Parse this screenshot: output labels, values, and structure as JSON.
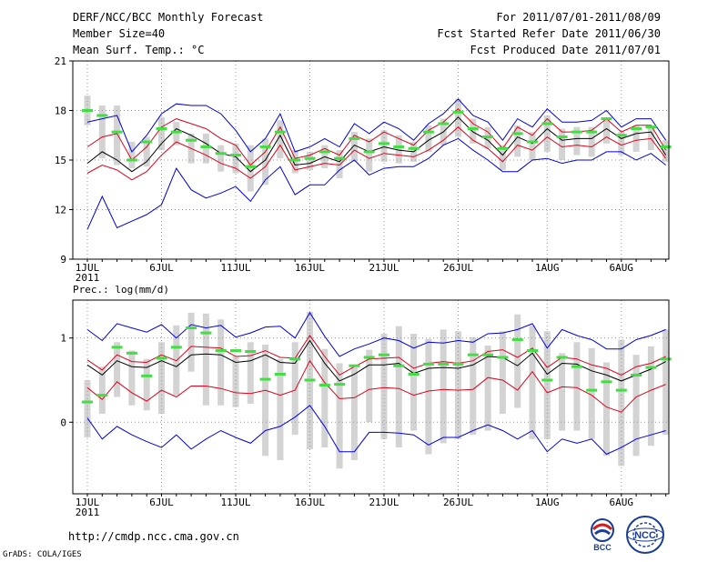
{
  "header": {
    "title": "DERF/NCC/BCC Monthly Forecast",
    "member_size": "Member Size=40",
    "variable": "Mean Surf. Temp.: °C",
    "period": "For 2011/07/01-2011/08/09",
    "started": "Fcst Started Refer Date 2011/06/30",
    "produced": "Fcst Produced Date 2011/07/01"
  },
  "footer": {
    "url": "http://cmdp.ncc.cma.gov.cn",
    "credit": "GrADS: COLA/IGES",
    "logo_bcc": "BCC",
    "logo_ncc": "NCC"
  },
  "colors": {
    "box": "#d3d3d3",
    "mean": "#000000",
    "spread": "#e0001b",
    "extreme": "#0000e0",
    "mode": "#44dd44",
    "grid": "#999999"
  },
  "chart_data": [
    {
      "type": "line",
      "name": "temperature",
      "title": "Mean Surf. Temp.: °C",
      "ylim": [
        9,
        21
      ],
      "yticks": [
        9,
        12,
        15,
        18,
        21
      ],
      "x": [
        1,
        2,
        3,
        4,
        5,
        6,
        7,
        8,
        9,
        10,
        11,
        12,
        13,
        14,
        15,
        16,
        17,
        18,
        19,
        20,
        21,
        22,
        23,
        24,
        25,
        26,
        27,
        28,
        29,
        30,
        31,
        32,
        33,
        34,
        35,
        36,
        37,
        38,
        39,
        40
      ],
      "xtick_labels": [
        {
          "x": 1,
          "label": "1JUL",
          "sub": "2011"
        },
        {
          "x": 6,
          "label": "6JUL"
        },
        {
          "x": 11,
          "label": "11JUL"
        },
        {
          "x": 16,
          "label": "16JUL"
        },
        {
          "x": 21,
          "label": "21JUL"
        },
        {
          "x": 26,
          "label": "26JUL"
        },
        {
          "x": 32,
          "label": "1AUG"
        },
        {
          "x": 37,
          "label": "6AUG"
        }
      ],
      "series": [
        {
          "name": "max",
          "values": [
            17.3,
            17.5,
            17.7,
            15.5,
            16.5,
            17.8,
            18.4,
            18.3,
            18.3,
            17.8,
            16.8,
            15.5,
            16.3,
            17.8,
            15.5,
            15.8,
            16.3,
            15.8,
            17.2,
            16.6,
            17.3,
            16.9,
            16.2,
            17.2,
            17.8,
            18.7,
            17.7,
            17.3,
            16.2,
            17.5,
            17.0,
            18.1,
            17.3,
            17.3,
            17.4,
            18.0,
            17.0,
            17.5,
            17.5,
            16.2
          ]
        },
        {
          "name": "upper",
          "values": [
            15.8,
            16.4,
            16.6,
            15.0,
            15.8,
            17.0,
            17.5,
            17.2,
            16.9,
            16.3,
            15.9,
            14.7,
            15.5,
            17.0,
            15.1,
            15.3,
            15.7,
            15.3,
            16.5,
            16.1,
            16.7,
            16.3,
            15.9,
            16.8,
            17.3,
            18.1,
            17.2,
            16.7,
            15.7,
            17.0,
            16.5,
            17.5,
            16.7,
            16.7,
            16.8,
            17.5,
            16.7,
            17.1,
            17.1,
            15.6
          ]
        },
        {
          "name": "mean",
          "values": [
            14.8,
            15.5,
            15.0,
            14.3,
            14.9,
            16.0,
            16.9,
            16.5,
            16.0,
            15.4,
            15.2,
            14.3,
            15.0,
            16.5,
            14.7,
            14.8,
            15.2,
            14.9,
            15.9,
            15.5,
            15.8,
            15.6,
            15.5,
            16.2,
            16.7,
            17.6,
            16.7,
            16.2,
            15.3,
            16.4,
            16.0,
            16.9,
            16.2,
            16.3,
            16.3,
            16.9,
            16.3,
            16.6,
            16.7,
            15.3
          ]
        },
        {
          "name": "lower",
          "values": [
            14.2,
            14.7,
            14.4,
            13.8,
            14.3,
            15.3,
            16.1,
            15.7,
            15.3,
            14.8,
            14.5,
            13.9,
            14.6,
            15.9,
            14.4,
            14.6,
            14.8,
            14.7,
            15.6,
            15.1,
            15.4,
            15.3,
            15.2,
            15.6,
            16.2,
            17.0,
            16.2,
            15.7,
            14.9,
            15.9,
            15.6,
            16.4,
            15.8,
            15.9,
            15.8,
            16.4,
            15.9,
            16.2,
            16.3,
            15.1
          ]
        },
        {
          "name": "min",
          "values": [
            10.8,
            12.8,
            10.9,
            11.3,
            11.7,
            12.3,
            14.5,
            13.2,
            12.7,
            13.0,
            13.4,
            12.5,
            13.8,
            14.6,
            12.9,
            13.5,
            13.5,
            14.4,
            15.0,
            14.1,
            14.5,
            14.6,
            14.6,
            15.1,
            15.9,
            16.3,
            15.6,
            15.0,
            14.3,
            14.3,
            15.0,
            15.1,
            14.8,
            15.0,
            15.0,
            15.5,
            15.5,
            15.0,
            15.4,
            14.7
          ]
        },
        {
          "name": "box_high",
          "values": [
            18.9,
            18.3,
            18.3,
            16.1,
            16.4,
            17.6,
            17.3,
            16.6,
            16.6,
            15.9,
            16.0,
            15.9,
            16.3,
            17.4,
            15.6,
            15.5,
            15.9,
            15.6,
            16.7,
            16.3,
            16.8,
            16.5,
            16.1,
            17.1,
            17.5,
            18.7,
            17.5,
            17.0,
            15.9,
            17.1,
            16.7,
            17.7,
            16.9,
            17.0,
            17.0,
            17.5,
            16.7,
            17.1,
            17.0,
            16.2
          ]
        },
        {
          "name": "box_low",
          "values": [
            17.1,
            15.1,
            14.7,
            14.5,
            14.6,
            15.6,
            15.9,
            14.8,
            14.8,
            14.3,
            14.2,
            13.1,
            13.5,
            15.1,
            14.2,
            14.4,
            14.5,
            13.9,
            14.9,
            14.3,
            14.9,
            14.8,
            14.9,
            15.5,
            15.9,
            16.4,
            16.0,
            15.7,
            14.4,
            15.2,
            15.0,
            15.5,
            15.0,
            15.3,
            15.2,
            16.0,
            15.3,
            15.5,
            15.6,
            14.9
          ]
        },
        {
          "name": "mode",
          "values": [
            18.0,
            17.7,
            16.7,
            15.0,
            16.1,
            16.9,
            16.7,
            16.2,
            15.8,
            15.4,
            15.3,
            14.6,
            15.8,
            16.7,
            15.0,
            15.1,
            15.5,
            15.1,
            16.3,
            15.5,
            16.0,
            15.8,
            15.7,
            16.7,
            17.2,
            17.9,
            16.9,
            16.4,
            15.7,
            16.6,
            16.1,
            17.2,
            16.4,
            16.7,
            16.7,
            17.5,
            16.5,
            16.9,
            17.0,
            15.8
          ]
        }
      ]
    },
    {
      "type": "line",
      "name": "precipitation",
      "title": "Prec.: log(mm/d)",
      "ylim": [
        -0.85,
        1.45
      ],
      "yticks": [
        0,
        1
      ],
      "x": [
        1,
        2,
        3,
        4,
        5,
        6,
        7,
        8,
        9,
        10,
        11,
        12,
        13,
        14,
        15,
        16,
        17,
        18,
        19,
        20,
        21,
        22,
        23,
        24,
        25,
        26,
        27,
        28,
        29,
        30,
        31,
        32,
        33,
        34,
        35,
        36,
        37,
        38,
        39,
        40
      ],
      "xtick_labels": [
        {
          "x": 1,
          "label": "1JUL",
          "sub": "2011"
        },
        {
          "x": 6,
          "label": "6JUL"
        },
        {
          "x": 11,
          "label": "11JUL"
        },
        {
          "x": 16,
          "label": "16JUL"
        },
        {
          "x": 21,
          "label": "21JUL"
        },
        {
          "x": 26,
          "label": "26JUL"
        },
        {
          "x": 32,
          "label": "1AUG"
        },
        {
          "x": 37,
          "label": "6AUG"
        }
      ],
      "series": [
        {
          "name": "max",
          "values": [
            1.1,
            0.97,
            1.17,
            1.12,
            1.07,
            1.16,
            1.0,
            1.16,
            1.12,
            1.15,
            1.01,
            1.06,
            1.13,
            1.14,
            1.0,
            1.3,
            1.02,
            0.78,
            0.87,
            0.93,
            1.0,
            0.97,
            0.88,
            0.95,
            0.94,
            0.97,
            0.95,
            1.05,
            1.06,
            1.1,
            1.17,
            0.88,
            1.1,
            1.03,
            0.98,
            0.87,
            0.87,
            0.98,
            1.03,
            1.1
          ]
        },
        {
          "name": "upper",
          "values": [
            0.74,
            0.62,
            0.8,
            0.72,
            0.71,
            0.8,
            0.73,
            0.9,
            0.89,
            0.88,
            0.78,
            0.79,
            0.85,
            0.77,
            0.76,
            1.03,
            0.78,
            0.56,
            0.66,
            0.75,
            0.76,
            0.77,
            0.64,
            0.7,
            0.72,
            0.7,
            0.73,
            0.84,
            0.86,
            0.77,
            0.88,
            0.65,
            0.77,
            0.75,
            0.68,
            0.64,
            0.56,
            0.66,
            0.7,
            0.78
          ]
        },
        {
          "name": "mean",
          "values": [
            0.68,
            0.56,
            0.73,
            0.66,
            0.65,
            0.73,
            0.66,
            0.8,
            0.81,
            0.8,
            0.71,
            0.73,
            0.8,
            0.71,
            0.7,
            0.97,
            0.7,
            0.49,
            0.57,
            0.68,
            0.68,
            0.7,
            0.58,
            0.64,
            0.65,
            0.64,
            0.68,
            0.78,
            0.77,
            0.67,
            0.82,
            0.57,
            0.7,
            0.69,
            0.61,
            0.56,
            0.49,
            0.56,
            0.63,
            0.72
          ]
        },
        {
          "name": "lower",
          "values": [
            0.41,
            0.27,
            0.48,
            0.35,
            0.25,
            0.38,
            0.3,
            0.43,
            0.43,
            0.4,
            0.35,
            0.34,
            0.38,
            0.32,
            0.38,
            0.73,
            0.47,
            0.28,
            0.29,
            0.39,
            0.41,
            0.4,
            0.32,
            0.37,
            0.39,
            0.38,
            0.39,
            0.53,
            0.5,
            0.38,
            0.6,
            0.35,
            0.42,
            0.41,
            0.32,
            0.18,
            0.12,
            0.3,
            0.38,
            0.45
          ]
        },
        {
          "name": "min",
          "values": [
            0.05,
            -0.2,
            -0.05,
            -0.15,
            -0.23,
            -0.3,
            -0.15,
            -0.32,
            -0.2,
            -0.1,
            -0.18,
            -0.25,
            -0.1,
            -0.05,
            0.06,
            0.2,
            -0.05,
            -0.35,
            -0.35,
            -0.12,
            -0.12,
            -0.13,
            -0.15,
            -0.27,
            -0.18,
            -0.18,
            -0.1,
            -0.03,
            -0.1,
            -0.2,
            -0.1,
            -0.35,
            -0.2,
            -0.25,
            -0.2,
            -0.38,
            -0.3,
            -0.2,
            -0.15,
            -0.1
          ]
        },
        {
          "name": "box_high",
          "values": [
            0.5,
            0.66,
            0.95,
            0.85,
            0.75,
            0.95,
            1.15,
            1.3,
            1.29,
            1.22,
            0.78,
            0.95,
            0.92,
            0.75,
            0.95,
            1.31,
            0.87,
            0.7,
            0.65,
            0.86,
            1.05,
            1.14,
            1.05,
            0.99,
            1.1,
            1.08,
            1.01,
            0.91,
            1.08,
            1.28,
            1.15,
            1.08,
            0.82,
            0.95,
            0.88,
            0.71,
            0.98,
            0.8,
            0.9,
            1.1
          ]
        },
        {
          "name": "box_low",
          "values": [
            -0.18,
            0.1,
            0.3,
            0.2,
            0.14,
            0.1,
            0.32,
            0.6,
            0.2,
            0.2,
            0.18,
            0.22,
            -0.4,
            -0.45,
            -0.15,
            -0.32,
            -0.3,
            -0.55,
            -0.45,
            0.0,
            -0.2,
            -0.3,
            -0.1,
            -0.38,
            -0.25,
            -0.2,
            -0.15,
            -0.1,
            0.1,
            0.17,
            -0.2,
            -0.2,
            -0.1,
            -0.1,
            -0.2,
            -0.4,
            -0.52,
            -0.4,
            -0.28,
            -0.15
          ]
        },
        {
          "name": "mode",
          "values": [
            0.24,
            0.32,
            0.89,
            0.82,
            0.55,
            0.76,
            0.89,
            1.12,
            1.06,
            0.85,
            0.85,
            0.84,
            0.51,
            0.57,
            0.75,
            0.5,
            0.44,
            0.45,
            0.67,
            0.77,
            0.8,
            0.67,
            0.57,
            0.69,
            0.69,
            0.69,
            0.8,
            0.8,
            0.77,
            0.98,
            0.85,
            0.5,
            0.77,
            0.66,
            0.38,
            0.48,
            0.38,
            0.56,
            0.65,
            0.75
          ]
        }
      ]
    }
  ]
}
